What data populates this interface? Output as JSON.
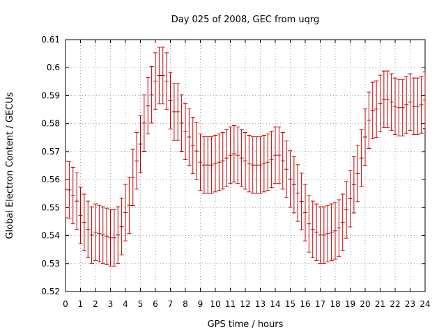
{
  "chart_data": {
    "type": "errorbar",
    "title": "Day 025 of 2008, GEC from uqrg",
    "xlabel": "GPS time / hours",
    "ylabel": "Global Electron Content / GECUs",
    "xlim": [
      0,
      24
    ],
    "ylim": [
      0.52,
      0.61
    ],
    "grid": true,
    "series_color": "#c00000",
    "x_ticks": [
      0,
      1,
      2,
      3,
      4,
      5,
      6,
      7,
      8,
      9,
      10,
      11,
      12,
      13,
      14,
      15,
      16,
      17,
      18,
      19,
      20,
      21,
      22,
      23,
      24
    ],
    "y_ticks": [
      0.52,
      0.53,
      0.54,
      0.55,
      0.56,
      0.57,
      0.58,
      0.59,
      0.6,
      0.61
    ],
    "x_tick_labels": [
      "0",
      "1",
      "2",
      "3",
      "4",
      "5",
      "6",
      "7",
      "8",
      "9",
      "10",
      "11",
      "12",
      "13",
      "14",
      "15",
      "16",
      "17",
      "18",
      "19",
      "20",
      "21",
      "22",
      "23",
      "24"
    ],
    "y_tick_labels": [
      "0.52",
      "0.53",
      "0.54",
      "0.55",
      "0.56",
      "0.57",
      "0.58",
      "0.59",
      "0.6",
      "0.61"
    ],
    "x": [
      0,
      0.25,
      0.5,
      0.75,
      1,
      1.25,
      1.5,
      1.75,
      2,
      2.25,
      2.5,
      2.75,
      3,
      3.25,
      3.5,
      3.75,
      4,
      4.25,
      4.5,
      4.75,
      5,
      5.25,
      5.5,
      5.75,
      6,
      6.25,
      6.5,
      6.75,
      7,
      7.25,
      7.5,
      7.75,
      8,
      8.25,
      8.5,
      8.75,
      9,
      9.25,
      9.5,
      9.75,
      10,
      10.25,
      10.5,
      10.75,
      11,
      11.25,
      11.5,
      11.75,
      12,
      12.25,
      12.5,
      12.75,
      13,
      13.25,
      13.5,
      13.75,
      14,
      14.25,
      14.5,
      14.75,
      15,
      15.25,
      15.5,
      15.75,
      16,
      16.25,
      16.5,
      16.75,
      17,
      17.25,
      17.5,
      17.75,
      18,
      18.25,
      18.5,
      18.75,
      19,
      19.25,
      19.5,
      19.75,
      20,
      20.25,
      20.5,
      20.75,
      21,
      21.25,
      21.5,
      21.75,
      22,
      22.25,
      22.5,
      22.75,
      23,
      23.25,
      23.5,
      23.75,
      24
    ],
    "y": [
      0.5565,
      0.5563,
      0.5543,
      0.5523,
      0.5472,
      0.5447,
      0.5422,
      0.5402,
      0.5412,
      0.5407,
      0.5402,
      0.5397,
      0.5392,
      0.5392,
      0.5402,
      0.5432,
      0.5482,
      0.5508,
      0.5608,
      0.5667,
      0.5727,
      0.5802,
      0.5864,
      0.5903,
      0.5952,
      0.5972,
      0.5972,
      0.5952,
      0.5882,
      0.5842,
      0.5842,
      0.5802,
      0.5772,
      0.5752,
      0.5722,
      0.5702,
      0.5662,
      0.5652,
      0.5652,
      0.5652,
      0.5657,
      0.5662,
      0.5667,
      0.5677,
      0.5687,
      0.5692,
      0.5687,
      0.5677,
      0.5667,
      0.5657,
      0.5652,
      0.5652,
      0.5652,
      0.5657,
      0.5662,
      0.5672,
      0.5687,
      0.5687,
      0.5667,
      0.5637,
      0.5602,
      0.5582,
      0.5552,
      0.5522,
      0.5482,
      0.5442,
      0.5422,
      0.5412,
      0.5402,
      0.5402,
      0.5407,
      0.5412,
      0.5417,
      0.5427,
      0.5447,
      0.5492,
      0.5532,
      0.5582,
      0.5622,
      0.5677,
      0.5752,
      0.5812,
      0.5847,
      0.5852,
      0.5872,
      0.5887,
      0.5887,
      0.5877,
      0.5862,
      0.5857,
      0.5857,
      0.5867,
      0.5877,
      0.5862,
      0.5862,
      0.5867,
      0.5884
    ],
    "error": 0.0101
  }
}
